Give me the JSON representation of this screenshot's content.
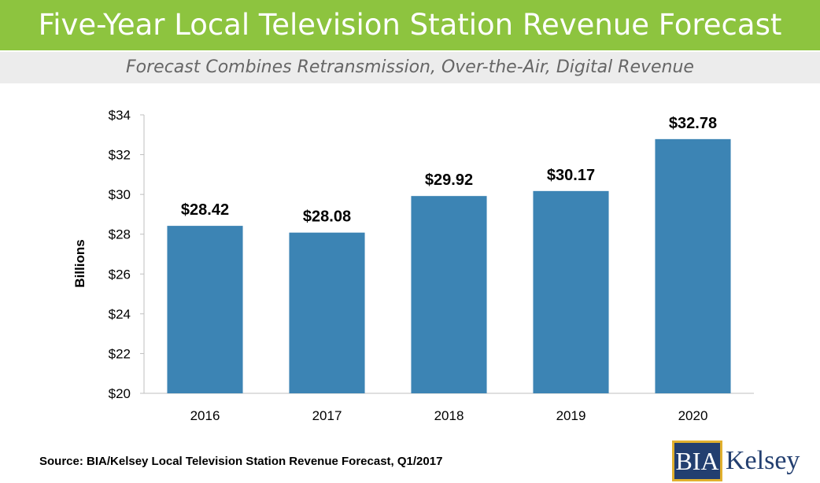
{
  "header": {
    "title": "Five-Year Local Television Station Revenue Forecast",
    "subtitle": "Forecast Combines Retransmission, Over-the-Air, Digital Revenue"
  },
  "footer": {
    "source": "Source: BIA/Kelsey Local Television Station Revenue Forecast, Q1/2017"
  },
  "logo": {
    "box_text": "BIA",
    "text": "Kelsey"
  },
  "colors": {
    "title_band": "#8dc43f",
    "subtitle_band": "#ececec",
    "bar": "#3c84b4",
    "logo_navy": "#233f70",
    "logo_gold": "#e1b02e"
  },
  "chart_data": {
    "type": "bar",
    "categories": [
      "2016",
      "2017",
      "2018",
      "2019",
      "2020"
    ],
    "values": [
      28.42,
      28.08,
      29.92,
      30.17,
      32.78
    ],
    "data_labels": [
      "$28.42",
      "$28.08",
      "$29.92",
      "$30.17",
      "$32.78"
    ],
    "ylabel": "Billions",
    "ylim": [
      20,
      34
    ],
    "yticks": [
      20,
      22,
      24,
      26,
      28,
      30,
      32,
      34
    ],
    "ytick_labels": [
      "$20",
      "$22",
      "$24",
      "$26",
      "$28",
      "$30",
      "$32",
      "$34"
    ],
    "grid": false,
    "legend": "none"
  }
}
